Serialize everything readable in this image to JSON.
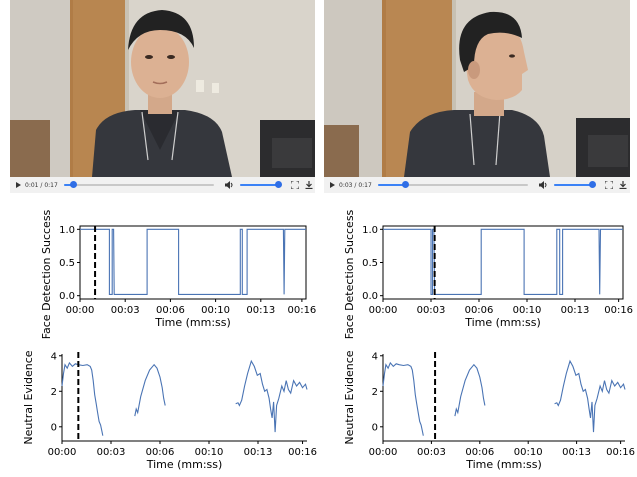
{
  "videos": [
    {
      "current_time": "0:01",
      "duration": "0:17",
      "progress": 0.06,
      "volume": 0.9
    },
    {
      "current_time": "0:03",
      "duration": "0:17",
      "progress": 0.18,
      "volume": 0.9
    }
  ],
  "chart_data": [
    {
      "type": "line",
      "ylabel": "Face Detection Success",
      "xlabel": "Time (mm:ss)",
      "xlim": [
        0,
        16.5
      ],
      "ylim": [
        -0.05,
        1.05
      ],
      "yticks": [
        "0.0",
        "0.5",
        "1.0"
      ],
      "xticks": [
        "00:00",
        "00:03",
        "00:06",
        "00:10",
        "00:13",
        "00:16"
      ],
      "xtick_values": [
        0,
        3.3,
        6.6,
        9.9,
        13.2,
        16.2
      ],
      "cursor_x": 1.1,
      "series": [
        {
          "points": [
            [
              0,
              1
            ],
            [
              2.15,
              1
            ],
            [
              2.15,
              0.02
            ],
            [
              2.35,
              0.02
            ],
            [
              2.35,
              1
            ],
            [
              2.45,
              1
            ],
            [
              2.5,
              0.02
            ],
            [
              4.9,
              0.02
            ],
            [
              4.9,
              1
            ],
            [
              7.2,
              1
            ],
            [
              7.2,
              0.02
            ],
            [
              11.7,
              0.02
            ],
            [
              11.7,
              1
            ],
            [
              11.85,
              1
            ],
            [
              11.85,
              0.02
            ],
            [
              12.2,
              0.02
            ],
            [
              12.2,
              1
            ],
            [
              14.85,
              1
            ],
            [
              14.9,
              0.02
            ],
            [
              14.95,
              1
            ],
            [
              16.5,
              1
            ]
          ]
        }
      ]
    },
    {
      "type": "line",
      "ylabel": "Face Detection Success",
      "xlabel": "Time (mm:ss)",
      "xlim": [
        0,
        16.5
      ],
      "ylim": [
        -0.05,
        1.05
      ],
      "yticks": [
        "0.0",
        "0.5",
        "1.0"
      ],
      "xticks": [
        "00:00",
        "00:03",
        "00:06",
        "00:10",
        "00:13",
        "00:16"
      ],
      "xtick_values": [
        0,
        3.3,
        6.6,
        9.9,
        13.2,
        16.2
      ],
      "cursor_x": 3.55,
      "series": [
        {
          "points": [
            [
              0,
              1
            ],
            [
              3.3,
              1
            ],
            [
              3.3,
              0.02
            ],
            [
              3.4,
              0.02
            ],
            [
              3.4,
              1
            ],
            [
              3.5,
              1
            ],
            [
              3.55,
              0.02
            ],
            [
              6.75,
              0.02
            ],
            [
              6.75,
              1
            ],
            [
              9.7,
              1
            ],
            [
              9.7,
              0.02
            ],
            [
              11.95,
              0.02
            ],
            [
              11.95,
              1
            ],
            [
              12.15,
              1
            ],
            [
              12.15,
              0.02
            ],
            [
              12.35,
              0.02
            ],
            [
              12.35,
              1
            ],
            [
              14.85,
              1
            ],
            [
              14.9,
              0.02
            ],
            [
              14.95,
              1
            ],
            [
              16.5,
              1
            ]
          ]
        }
      ]
    },
    {
      "type": "line",
      "ylabel": "Neutral Evidence",
      "xlabel": "Time (mm:ss)",
      "xlim": [
        0,
        16.5
      ],
      "ylim": [
        -0.8,
        4.1
      ],
      "yticks": [
        "0",
        "2",
        "4"
      ],
      "xticks": [
        "00:00",
        "00:03",
        "00:06",
        "00:10",
        "00:13",
        "00:16"
      ],
      "xtick_values": [
        0,
        3.3,
        6.6,
        9.9,
        13.2,
        16.2
      ],
      "cursor_x": 1.1,
      "series": [
        {
          "points": [
            [
              0,
              2.3
            ],
            [
              0.1,
              3.0
            ],
            [
              0.2,
              3.5
            ],
            [
              0.35,
              3.3
            ],
            [
              0.5,
              3.6
            ],
            [
              0.7,
              3.4
            ],
            [
              0.9,
              3.55
            ],
            [
              1.1,
              3.5
            ],
            [
              1.4,
              3.45
            ],
            [
              1.7,
              3.5
            ],
            [
              1.9,
              3.4
            ],
            [
              2.0,
              3.2
            ],
            [
              2.1,
              2.6
            ],
            [
              2.2,
              1.8
            ],
            [
              2.3,
              1.3
            ],
            [
              2.4,
              0.8
            ],
            [
              2.5,
              0.3
            ],
            [
              2.6,
              0.1
            ],
            [
              2.7,
              -0.3
            ],
            [
              2.75,
              -0.5
            ]
          ]
        },
        {
          "points": [
            [
              4.9,
              0.6
            ],
            [
              5.0,
              1.0
            ],
            [
              5.1,
              0.8
            ],
            [
              5.3,
              1.7
            ],
            [
              5.6,
              2.6
            ],
            [
              5.9,
              3.2
            ],
            [
              6.2,
              3.5
            ],
            [
              6.4,
              3.3
            ],
            [
              6.6,
              2.8
            ],
            [
              6.75,
              2.2
            ],
            [
              6.85,
              1.6
            ],
            [
              6.95,
              1.2
            ]
          ]
        },
        {
          "points": [
            [
              11.7,
              1.3
            ],
            [
              11.85,
              1.35
            ],
            [
              11.95,
              1.2
            ],
            [
              12.1,
              1.5
            ],
            [
              12.3,
              2.3
            ],
            [
              12.5,
              3.0
            ],
            [
              12.75,
              3.7
            ],
            [
              12.95,
              3.4
            ],
            [
              13.15,
              2.9
            ],
            [
              13.35,
              3.0
            ],
            [
              13.5,
              2.4
            ],
            [
              13.65,
              2.0
            ],
            [
              13.8,
              2.1
            ],
            [
              13.95,
              1.6
            ],
            [
              14.05,
              1.0
            ],
            [
              14.15,
              0.5
            ],
            [
              14.25,
              1.4
            ],
            [
              14.35,
              -0.3
            ],
            [
              14.45,
              1.2
            ],
            [
              14.6,
              1.6
            ],
            [
              14.8,
              2.3
            ],
            [
              14.95,
              2.0
            ],
            [
              15.1,
              2.6
            ],
            [
              15.25,
              2.1
            ],
            [
              15.4,
              1.9
            ],
            [
              15.6,
              2.6
            ],
            [
              15.8,
              2.3
            ],
            [
              16.0,
              2.5
            ],
            [
              16.2,
              2.2
            ],
            [
              16.4,
              2.4
            ],
            [
              16.5,
              2.1
            ]
          ]
        }
      ]
    },
    {
      "type": "line",
      "ylabel": "Neutral Evidence",
      "xlabel": "Time (mm:ss)",
      "xlim": [
        0,
        16.5
      ],
      "ylim": [
        -0.8,
        4.1
      ],
      "yticks": [
        "0",
        "2",
        "4"
      ],
      "xticks": [
        "00:00",
        "00:03",
        "00:06",
        "00:10",
        "00:13",
        "00:16"
      ],
      "xtick_values": [
        0,
        3.3,
        6.6,
        9.9,
        13.2,
        16.2
      ],
      "cursor_x": 3.55,
      "series": [
        {
          "points": [
            [
              0,
              2.3
            ],
            [
              0.1,
              3.0
            ],
            [
              0.2,
              3.5
            ],
            [
              0.35,
              3.3
            ],
            [
              0.5,
              3.6
            ],
            [
              0.7,
              3.4
            ],
            [
              0.9,
              3.55
            ],
            [
              1.1,
              3.5
            ],
            [
              1.4,
              3.45
            ],
            [
              1.7,
              3.5
            ],
            [
              1.9,
              3.4
            ],
            [
              2.0,
              3.2
            ],
            [
              2.1,
              2.6
            ],
            [
              2.2,
              1.8
            ],
            [
              2.3,
              1.3
            ],
            [
              2.4,
              0.8
            ],
            [
              2.5,
              0.3
            ],
            [
              2.6,
              0.1
            ],
            [
              2.7,
              -0.3
            ],
            [
              2.75,
              -0.5
            ]
          ]
        },
        {
          "points": [
            [
              4.9,
              0.6
            ],
            [
              5.0,
              1.0
            ],
            [
              5.1,
              0.8
            ],
            [
              5.3,
              1.7
            ],
            [
              5.6,
              2.6
            ],
            [
              5.9,
              3.2
            ],
            [
              6.2,
              3.5
            ],
            [
              6.4,
              3.3
            ],
            [
              6.6,
              2.8
            ],
            [
              6.75,
              2.2
            ],
            [
              6.85,
              1.6
            ],
            [
              6.95,
              1.2
            ]
          ]
        },
        {
          "points": [
            [
              11.7,
              1.3
            ],
            [
              11.85,
              1.35
            ],
            [
              11.95,
              1.2
            ],
            [
              12.1,
              1.5
            ],
            [
              12.3,
              2.3
            ],
            [
              12.5,
              3.0
            ],
            [
              12.75,
              3.7
            ],
            [
              12.95,
              3.4
            ],
            [
              13.15,
              2.9
            ],
            [
              13.35,
              3.0
            ],
            [
              13.5,
              2.4
            ],
            [
              13.65,
              2.0
            ],
            [
              13.8,
              2.1
            ],
            [
              13.95,
              1.6
            ],
            [
              14.05,
              1.0
            ],
            [
              14.15,
              0.5
            ],
            [
              14.25,
              1.4
            ],
            [
              14.35,
              -0.3
            ],
            [
              14.45,
              1.2
            ],
            [
              14.6,
              1.6
            ],
            [
              14.8,
              2.3
            ],
            [
              14.95,
              2.0
            ],
            [
              15.1,
              2.6
            ],
            [
              15.25,
              2.1
            ],
            [
              15.4,
              1.9
            ],
            [
              15.6,
              2.6
            ],
            [
              15.8,
              2.3
            ],
            [
              16.0,
              2.5
            ],
            [
              16.2,
              2.2
            ],
            [
              16.4,
              2.4
            ],
            [
              16.5,
              2.1
            ]
          ]
        }
      ]
    }
  ],
  "colors": {
    "line": "#4a74b4",
    "cursor": "#000000",
    "accent": "#2f6ee6"
  }
}
